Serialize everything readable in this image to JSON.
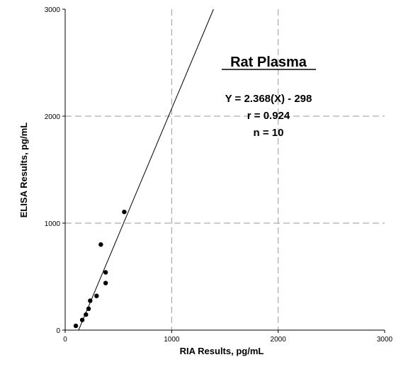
{
  "chart_data": {
    "type": "scatter",
    "title": "",
    "xlabel": "RIA Results, pg/mL",
    "ylabel": "ELISA Results, pg/mL",
    "xlim": [
      0,
      3000
    ],
    "ylim": [
      0,
      3000
    ],
    "x_ticks": [
      "0",
      "1000",
      "2000",
      "3000"
    ],
    "y_ticks": [
      "0",
      "1000",
      "2000",
      "3000"
    ],
    "gridlines": {
      "x": [
        1000,
        2000
      ],
      "y": [
        1000,
        2000
      ],
      "style": "dashed"
    },
    "series": [
      {
        "points": [
          {
            "x": 100,
            "y": 40
          },
          {
            "x": 160,
            "y": 95
          },
          {
            "x": 195,
            "y": 145
          },
          {
            "x": 220,
            "y": 200
          },
          {
            "x": 235,
            "y": 275
          },
          {
            "x": 295,
            "y": 320
          },
          {
            "x": 335,
            "y": 800
          },
          {
            "x": 380,
            "y": 540
          },
          {
            "x": 380,
            "y": 440
          },
          {
            "x": 555,
            "y": 1105
          }
        ]
      }
    ],
    "regression_line": {
      "slope": 2.368,
      "intercept": -298
    },
    "annotations": {
      "panel_title": "Rat Plasma",
      "equation": "Y = 2.368(X) - 298",
      "r": "r = 0.924",
      "n": "n = 10"
    }
  }
}
